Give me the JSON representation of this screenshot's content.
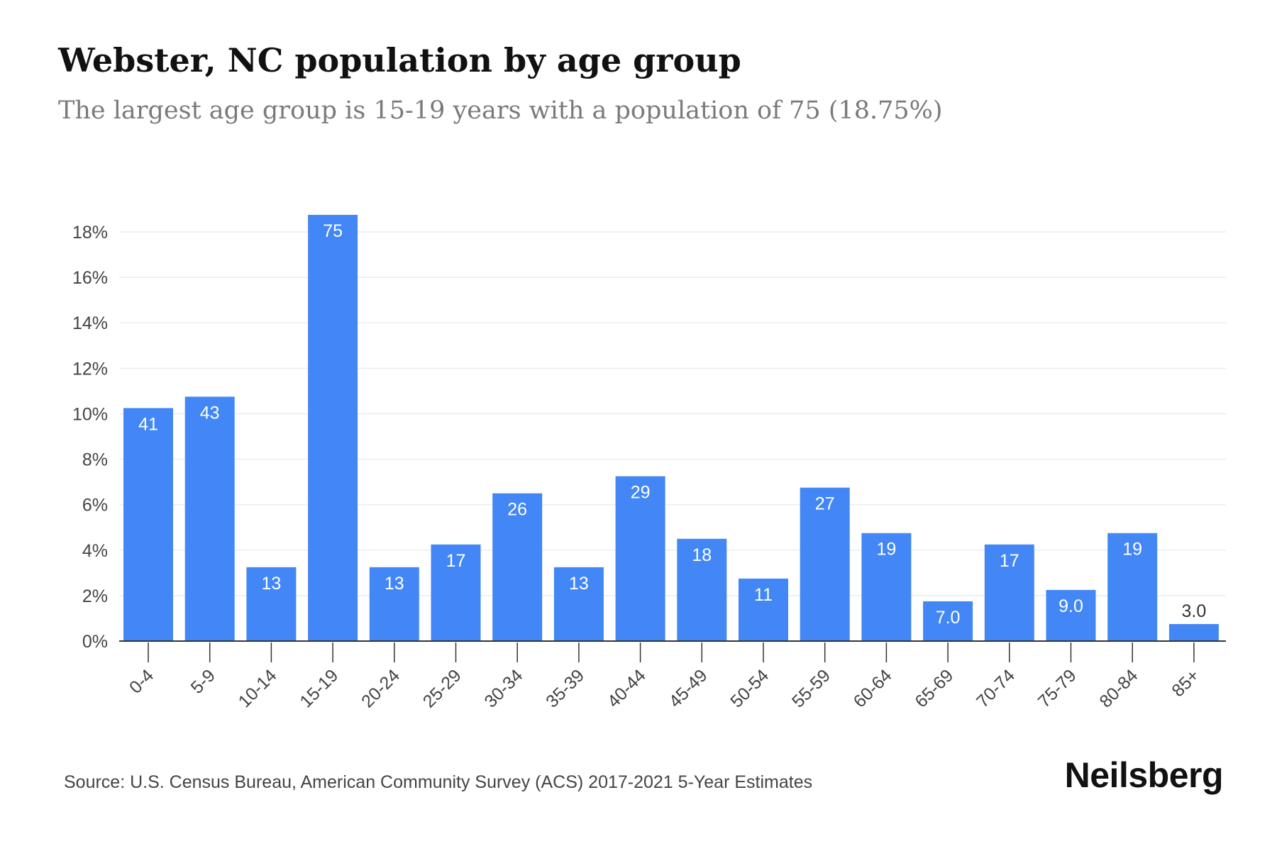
{
  "chart_data": {
    "type": "bar",
    "title": "Webster, NC population by age group",
    "subtitle": "The largest age group is 15-19 years with a population of 75 (18.75%)",
    "xlabel": "",
    "ylabel": "",
    "categories": [
      "0-4",
      "5-9",
      "10-14",
      "15-19",
      "20-24",
      "25-29",
      "30-34",
      "35-39",
      "40-44",
      "45-49",
      "50-54",
      "55-59",
      "60-64",
      "65-69",
      "70-74",
      "75-79",
      "80-84",
      "85+"
    ],
    "values": [
      10.25,
      10.75,
      3.25,
      18.75,
      3.25,
      4.25,
      6.5,
      3.25,
      7.25,
      4.5,
      2.75,
      6.75,
      4.75,
      1.75,
      4.25,
      2.25,
      4.75,
      0.75
    ],
    "data_labels": [
      "41",
      "43",
      "13",
      "75",
      "13",
      "17",
      "26",
      "13",
      "29",
      "18",
      "11",
      "27",
      "19",
      "7.0",
      "17",
      "9.0",
      "19",
      "3.0"
    ],
    "ylim": [
      0,
      18
    ],
    "y_ticks": [
      0,
      2,
      4,
      6,
      8,
      10,
      12,
      14,
      16,
      18
    ],
    "y_tick_labels": [
      "0%",
      "2%",
      "4%",
      "6%",
      "8%",
      "10%",
      "12%",
      "14%",
      "16%",
      "18%"
    ],
    "grid": true,
    "legend": "none",
    "bar_color": "#4287f5",
    "grid_color": "#ececec",
    "axis_color": "#333333"
  },
  "footer": {
    "source": "Source: U.S. Census Bureau, American Community Survey (ACS) 2017-2021 5-Year Estimates",
    "brand": "Neilsberg"
  }
}
